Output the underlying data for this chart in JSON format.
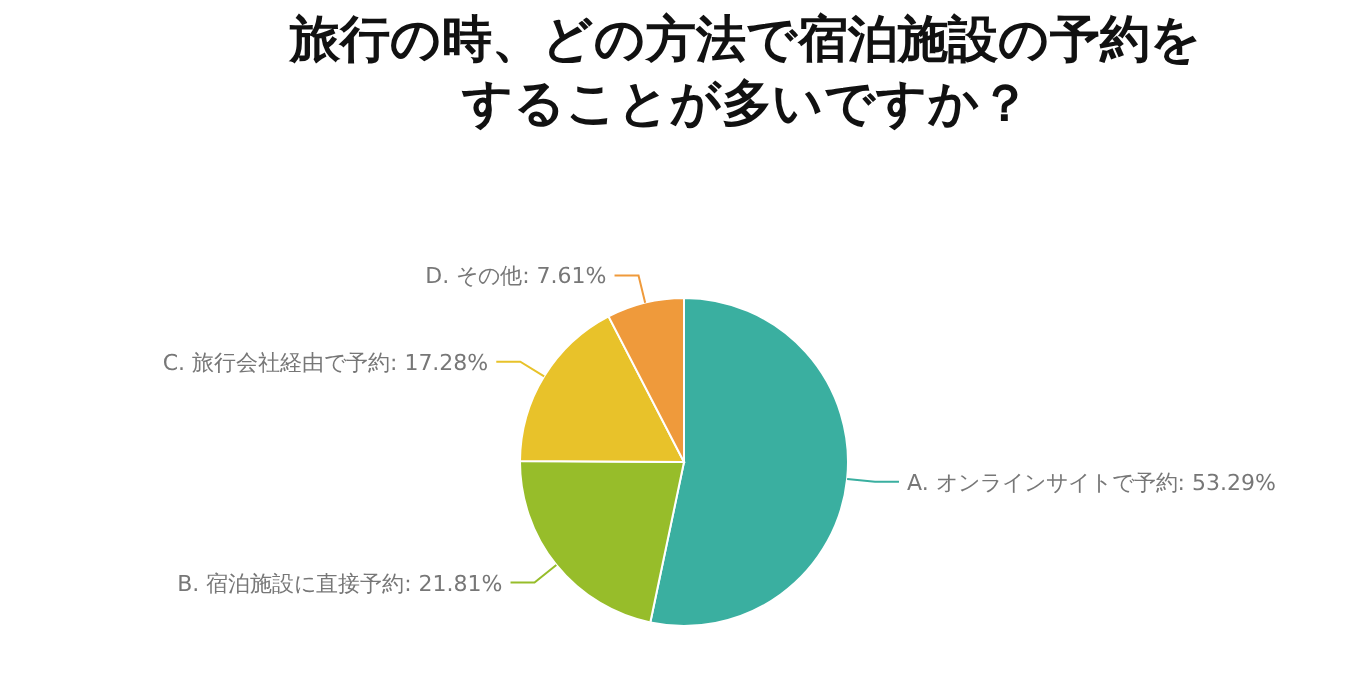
{
  "chart_data": {
    "type": "pie",
    "title": "旅行の時、どの方法で宿泊施設の予約をすることが多いですか？",
    "categories": [
      "A. オンラインサイトで予約",
      "B. 宿泊施設に直接予約",
      "C. 旅行会社経由で予約",
      "D. その他"
    ],
    "values": [
      53.29,
      21.81,
      17.28,
      7.61
    ],
    "value_labels": [
      "53.29%",
      "21.81%",
      "17.28%",
      "7.61%"
    ],
    "colors": [
      "#3aafa0",
      "#97bd2a",
      "#e8c22a",
      "#ef9a3b"
    ]
  }
}
